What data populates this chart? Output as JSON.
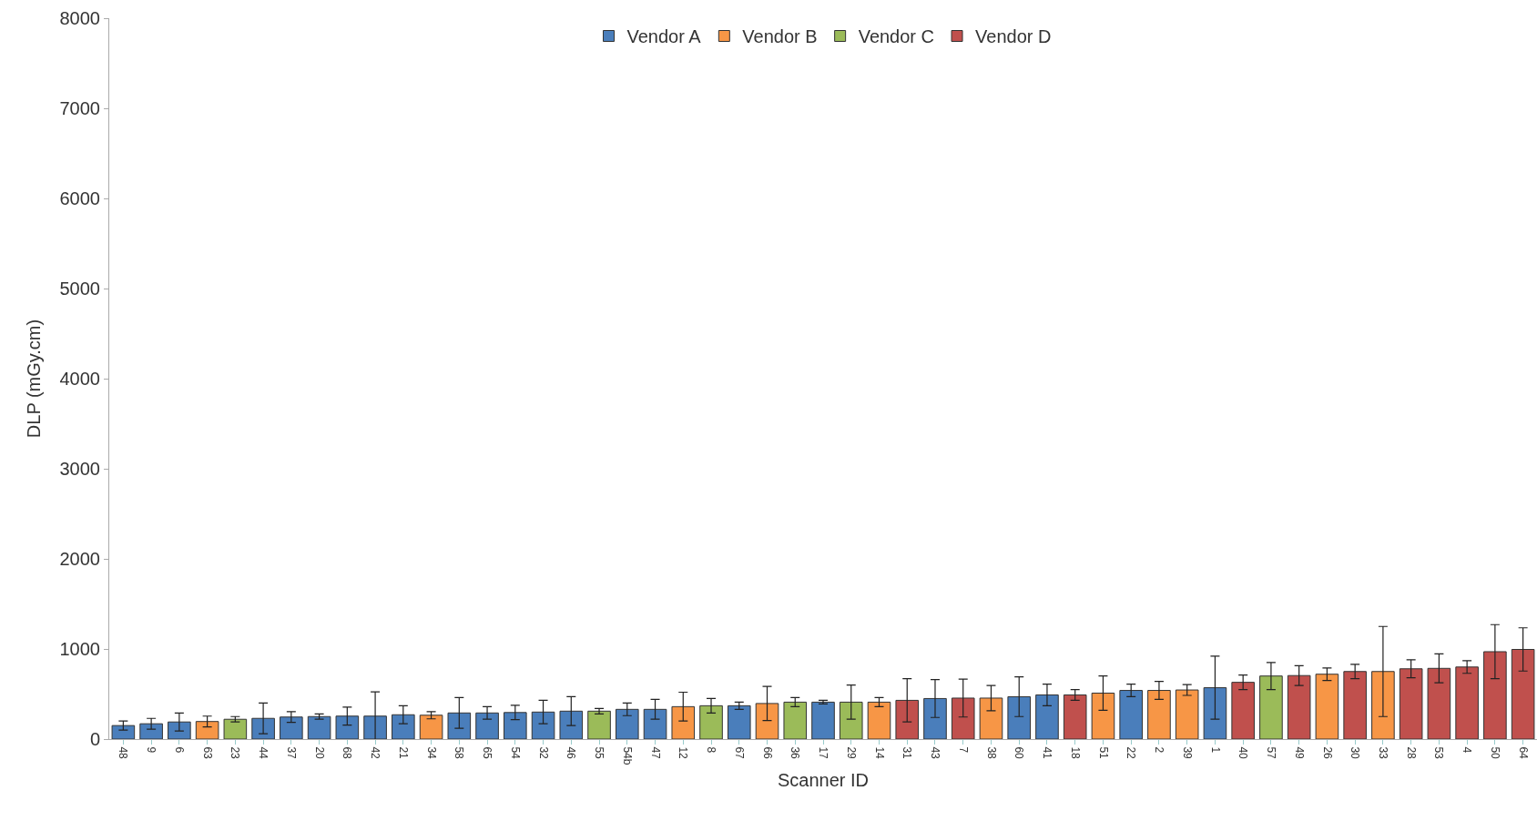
{
  "chart_data": {
    "type": "bar",
    "xlabel": "Scanner ID",
    "ylabel": "DLP (mGy.cm)",
    "categories": [
      "48",
      "9",
      "6",
      "63",
      "23",
      "44",
      "37",
      "20",
      "68",
      "42",
      "21",
      "34",
      "58",
      "65",
      "54",
      "32",
      "46",
      "55",
      "54b",
      "47",
      "12",
      "8",
      "67",
      "66",
      "36",
      "17",
      "29",
      "14",
      "31",
      "43",
      "7",
      "38",
      "60",
      "41",
      "18",
      "51",
      "22",
      "2",
      "39",
      "1",
      "40",
      "57",
      "49",
      "26",
      "30",
      "33",
      "28",
      "53",
      "4",
      "50",
      "64"
    ],
    "series": [
      {
        "name": "Vendor A",
        "color": "#4a7ebb",
        "values": [
          150,
          170,
          190,
          null,
          null,
          230,
          245,
          250,
          255,
          255,
          270,
          null,
          290,
          290,
          295,
          300,
          310,
          null,
          330,
          330,
          null,
          null,
          370,
          null,
          null,
          410,
          null,
          null,
          null,
          450,
          null,
          null,
          470,
          490,
          null,
          null,
          540,
          null,
          null,
          570,
          null,
          null,
          null,
          null,
          null,
          null,
          null,
          null,
          null,
          null,
          null
        ],
        "errors": [
          50,
          60,
          100,
          null,
          null,
          170,
          60,
          30,
          100,
          270,
          100,
          null,
          170,
          70,
          80,
          130,
          160,
          null,
          70,
          110,
          null,
          null,
          40,
          null,
          null,
          20,
          null,
          null,
          null,
          210,
          null,
          null,
          220,
          120,
          null,
          null,
          70,
          null,
          null,
          350,
          null,
          null,
          null,
          null,
          null,
          null,
          null,
          null,
          null,
          null,
          null
        ]
      },
      {
        "name": "Vendor B",
        "color": "#f79646",
        "values": [
          null,
          null,
          null,
          195,
          null,
          null,
          null,
          null,
          null,
          null,
          null,
          265,
          null,
          null,
          null,
          null,
          null,
          null,
          null,
          null,
          360,
          null,
          null,
          395,
          null,
          null,
          null,
          410,
          null,
          null,
          null,
          455,
          null,
          null,
          null,
          510,
          null,
          540,
          545,
          null,
          null,
          null,
          null,
          720,
          null,
          750,
          null,
          null,
          null,
          null,
          null
        ],
        "errors": [
          null,
          null,
          null,
          60,
          null,
          null,
          null,
          null,
          null,
          null,
          null,
          40,
          null,
          null,
          null,
          null,
          null,
          null,
          null,
          null,
          160,
          null,
          null,
          190,
          null,
          null,
          null,
          50,
          null,
          null,
          null,
          140,
          null,
          null,
          null,
          190,
          null,
          100,
          60,
          null,
          null,
          null,
          null,
          70,
          null,
          500,
          null,
          null,
          null,
          null,
          null
        ]
      },
      {
        "name": "Vendor C",
        "color": "#9bbb59",
        "values": [
          null,
          null,
          null,
          null,
          220,
          null,
          null,
          null,
          null,
          null,
          null,
          null,
          null,
          null,
          null,
          null,
          null,
          310,
          null,
          null,
          null,
          370,
          null,
          null,
          410,
          null,
          410,
          null,
          null,
          null,
          null,
          null,
          null,
          null,
          null,
          null,
          null,
          null,
          null,
          null,
          null,
          700,
          null,
          null,
          null,
          null,
          null,
          null,
          null,
          null,
          null
        ],
        "errors": [
          null,
          null,
          null,
          null,
          30,
          null,
          null,
          null,
          null,
          null,
          null,
          null,
          null,
          null,
          null,
          null,
          null,
          30,
          null,
          null,
          null,
          80,
          null,
          null,
          50,
          null,
          190,
          null,
          null,
          null,
          null,
          null,
          null,
          null,
          null,
          null,
          null,
          null,
          null,
          null,
          null,
          150,
          null,
          null,
          null,
          null,
          null,
          null,
          null,
          null,
          null
        ]
      },
      {
        "name": "Vendor D",
        "color": "#c0504d",
        "values": [
          null,
          null,
          null,
          null,
          null,
          null,
          null,
          null,
          null,
          null,
          null,
          null,
          null,
          null,
          null,
          null,
          null,
          null,
          null,
          null,
          null,
          null,
          null,
          null,
          null,
          null,
          null,
          null,
          430,
          null,
          455,
          null,
          null,
          null,
          490,
          null,
          null,
          null,
          null,
          null,
          630,
          null,
          705,
          null,
          750,
          null,
          780,
          785,
          800,
          970,
          995
        ],
        "errors": [
          null,
          null,
          null,
          null,
          null,
          null,
          null,
          null,
          null,
          null,
          null,
          null,
          null,
          null,
          null,
          null,
          null,
          null,
          null,
          null,
          null,
          null,
          null,
          null,
          null,
          null,
          null,
          null,
          240,
          null,
          210,
          null,
          null,
          null,
          60,
          null,
          null,
          null,
          null,
          null,
          80,
          null,
          110,
          null,
          80,
          null,
          100,
          160,
          70,
          300,
          240
        ]
      }
    ],
    "ylim": [
      0,
      8000
    ],
    "yticks": [
      0,
      1000,
      2000,
      3000,
      4000,
      5000,
      6000,
      7000,
      8000
    ],
    "grid": false,
    "legend": "top"
  }
}
